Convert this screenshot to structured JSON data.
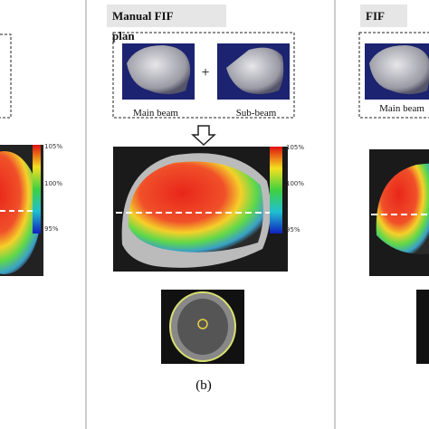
{
  "panels": [
    {
      "colorbar_labels": [
        "105%",
        "100%",
        "95%"
      ]
    },
    {
      "title": [
        "Manual FIF",
        "plan"
      ],
      "beams": [
        "Main beam",
        "Sub-beam"
      ],
      "operator": "+",
      "colorbar_labels": [
        "105%",
        "100%",
        "95%"
      ],
      "caption": "(b)"
    },
    {
      "title": "FIF",
      "beams": [
        "Main beam"
      ]
    }
  ]
}
